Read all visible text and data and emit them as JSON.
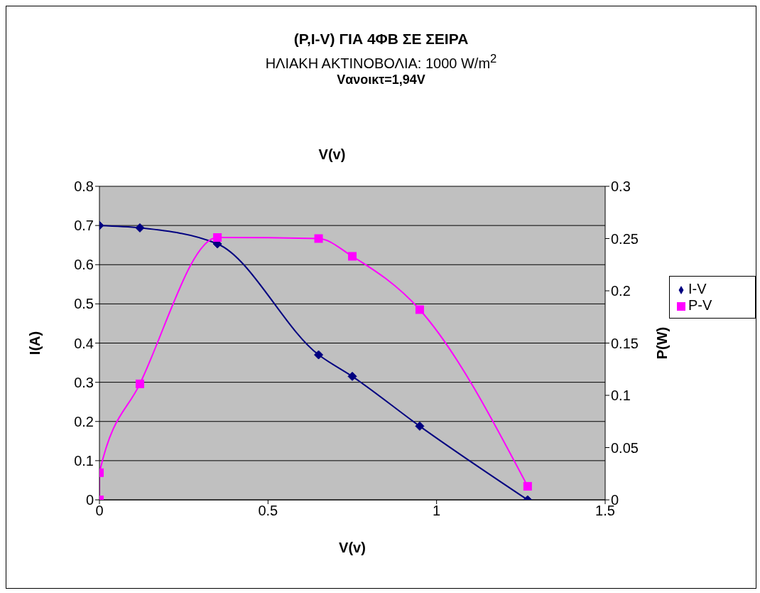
{
  "chart_data": {
    "type": "line",
    "title": "(P,I-V) ΓΙΑ 4ΦΒ ΣΕ ΣΕΙΡΑ",
    "subtitle": "ΗΛΙΑΚΗ ΑΚΤΙΝΟΒΟΛΙΑ: 1000 W/m$^{2}$",
    "annotations": [
      "Vανοικτ=1,94V",
      "V(v)"
    ],
    "xlabel": "V(v)",
    "ylabel": "I(A)",
    "y2label": "P(W)",
    "series": [
      {
        "name": "I-V",
        "color": "#000080",
        "marker": "diamond",
        "x": [
          0,
          0.12,
          0.35,
          0.65,
          0.75,
          0.95,
          1.27
        ],
        "values": [
          0.7,
          0.694,
          0.653,
          0.37,
          0.315,
          0.188,
          0
        ]
      },
      {
        "name": "P-V",
        "color": "#ff00ff",
        "marker": "square",
        "axis": "y2",
        "x": [
          0,
          0,
          0.12,
          0.35,
          0.65,
          0.75,
          0.95,
          1.27
        ],
        "values": [
          0,
          0.026,
          0.111,
          0.251,
          0.25,
          0.233,
          0.182,
          0.013
        ]
      }
    ],
    "xlim": [
      0,
      1.5
    ],
    "xticks": [
      0,
      0.5,
      1,
      1.5
    ],
    "ylim": [
      0,
      0.8
    ],
    "yticks": [
      0,
      0.1,
      0.2,
      0.3,
      0.4,
      0.5,
      0.6,
      0.7,
      0.8
    ],
    "y2lim": [
      0,
      0.3
    ],
    "y2ticks": [
      0,
      0.05,
      0.1,
      0.15,
      0.2,
      0.25,
      0.3
    ],
    "grid": "y",
    "legend": "right"
  }
}
